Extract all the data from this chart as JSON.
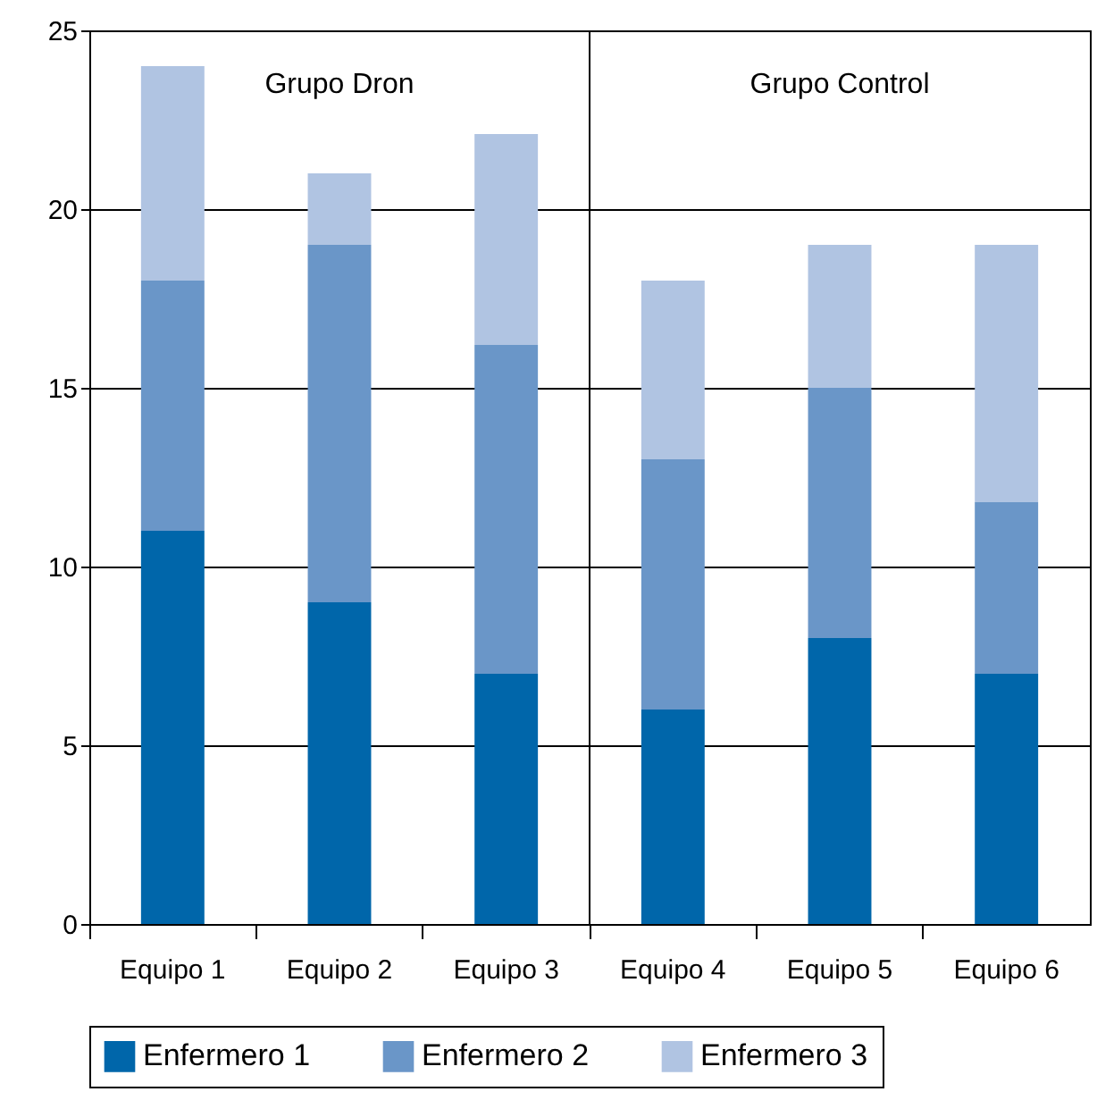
{
  "chart_data": {
    "type": "bar",
    "stacked": true,
    "categories": [
      "Equipo 1",
      "Equipo 2",
      "Equipo 3",
      "Equipo 4",
      "Equipo 5",
      "Equipo 6"
    ],
    "series": [
      {
        "name": "Enfermero 1",
        "color": "#0066aa",
        "values": [
          11,
          9,
          7,
          6,
          8,
          7
        ]
      },
      {
        "name": "Enfermero 2",
        "color": "#6a96c8",
        "values": [
          7,
          10,
          9.2,
          7,
          7,
          4.8
        ]
      },
      {
        "name": "Enfermero 3",
        "color": "#b0c4e2",
        "values": [
          6,
          2,
          5.9,
          5,
          4,
          7.2
        ]
      }
    ],
    "ylim": [
      0,
      25
    ],
    "yticks": [
      0,
      5,
      10,
      15,
      20,
      25
    ],
    "grid": "y",
    "legend": "bottom",
    "annotations": [
      "Grupo Dron",
      "Grupo Control"
    ]
  }
}
